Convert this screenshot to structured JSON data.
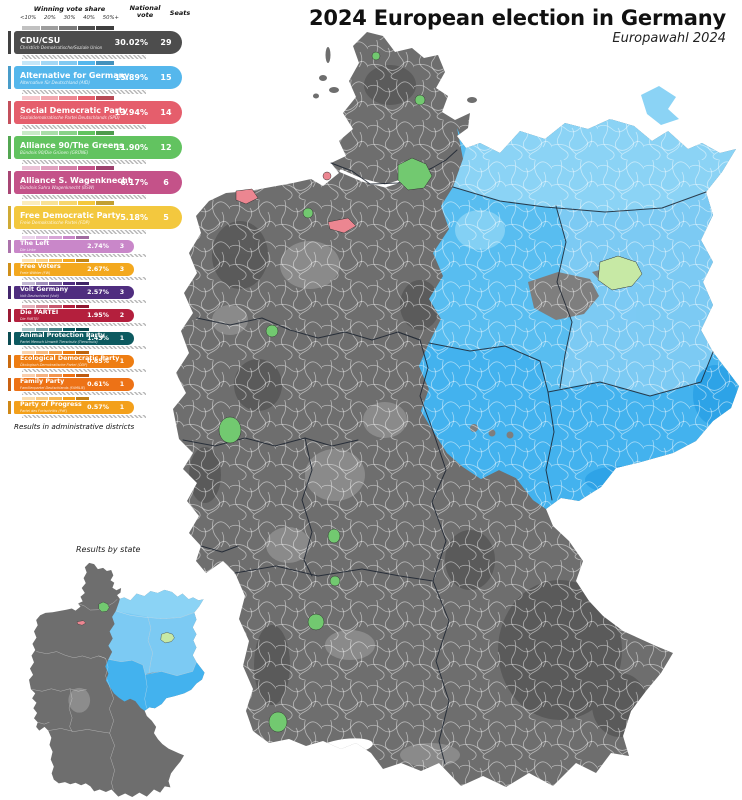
{
  "header": {
    "title": "2024 European election in Germany",
    "subtitle": "Europawahl 2024"
  },
  "legend": {
    "scale_title": "Winning vote share",
    "scale_ticks": [
      "<10%",
      "20%",
      "30%",
      "40%",
      "50%+"
    ],
    "national_vote_label": "National vote",
    "seats_label": "Seats",
    "footnote": "Results in administrative districts",
    "parties": [
      {
        "id": "cdu",
        "name": "CDU/CSU",
        "native": "Christlich Demokratische/Soziale Union",
        "vote": "30.02%",
        "seats": "29",
        "color": "#4d4d4d"
      },
      {
        "id": "afd",
        "name": "Alternative for Germany",
        "native": "Alternative für Deutschland (AfD)",
        "vote": "15.89%",
        "seats": "15",
        "color": "#55b7ec"
      },
      {
        "id": "spd",
        "name": "Social Democratic Party",
        "native": "Sozialdemokratische Partei Deutschlands (SPD)",
        "vote": "13.94%",
        "seats": "14",
        "color": "#e55e6c"
      },
      {
        "id": "gruene",
        "name": "Alliance 90/The Greens",
        "native": "Bündnis 90/Die Grünen (GRÜNE)",
        "vote": "11.90%",
        "seats": "12",
        "color": "#62c360"
      },
      {
        "id": "bsw",
        "name": "Alliance S. Wagenknecht",
        "native": "Bündnis Sahra Wagenknecht (BSW)",
        "vote": "6.17%",
        "seats": "6",
        "color": "#c45289"
      },
      {
        "id": "fdp",
        "name": "Free Democratic Party",
        "native": "Freie Demokratische Partei (FDP)",
        "vote": "5.18%",
        "seats": "5",
        "color": "#f3c83e"
      },
      {
        "id": "linke",
        "name": "The Left",
        "native": "Die Linke",
        "vote": "2.74%",
        "seats": "3",
        "color": "#c987c9"
      },
      {
        "id": "fw",
        "name": "Free Voters",
        "native": "Freie Wähler (FW)",
        "vote": "2.67%",
        "seats": "3",
        "color": "#f3a81e"
      },
      {
        "id": "volt",
        "name": "Volt Germany",
        "native": "Volt Deutschland (Volt)",
        "vote": "2.57%",
        "seats": "3",
        "color": "#4f2d7f"
      },
      {
        "id": "partei",
        "name": "Die PARTEI",
        "native": "Die PARTEI",
        "vote": "1.95%",
        "seats": "2",
        "color": "#b41f3d"
      },
      {
        "id": "tierschutz",
        "name": "Animal Protection Party",
        "native": "Partei Mensch Umwelt Tierschutz (Tierschutz)",
        "vote": "1.43%",
        "seats": "1",
        "color": "#0d5a60"
      },
      {
        "id": "oedp",
        "name": "Ecological Democratic Party",
        "native": "Ökologisch-Demokratische Partei (ÖDP)",
        "vote": "0.65%",
        "seats": "1",
        "color": "#ee7d12"
      },
      {
        "id": "familie",
        "name": "Family Party",
        "native": "Familienpartei Deutschlands (FAMILIE)",
        "vote": "0.61%",
        "seats": "1",
        "color": "#ed7216"
      },
      {
        "id": "pdf",
        "name": "Party of Progress",
        "native": "Partei des Fortschritts (PdF)",
        "vote": "0.57%",
        "seats": "1",
        "color": "#f3a01b"
      }
    ]
  },
  "minimap": {
    "label": "Results by state"
  },
  "map": {
    "palette": {
      "west_base": "#6e6e6e",
      "west_dark": "#474747",
      "west_light": "#a6a6a6",
      "east_base": "#58bdf0",
      "east_mv": "#8bd3f5",
      "east_brandenburg": "#7ccaf3",
      "east_south": "#43b2ee",
      "east_dark": "#2aa0e5",
      "berlin": "#c7e9a5",
      "east_gray": "#7e7e7e",
      "border_state": "#1c2430",
      "border_district": "#ffffff",
      "sea": "#ffffff"
    },
    "regions": {
      "west_winner_color_of": "CDU/CSU",
      "east_winner_color_of": "Alternative for Germany"
    }
  }
}
